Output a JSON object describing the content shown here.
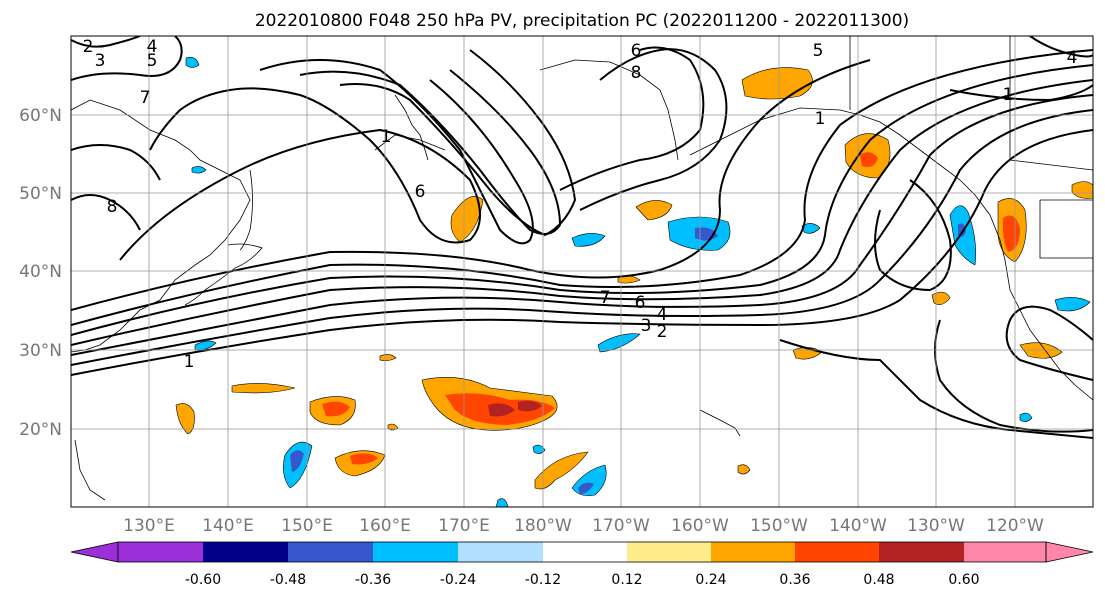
{
  "title": "2022010800 F048 250 hPa PV, precipitation PC (2022011200 - 2022011300)",
  "lat_labels": [
    "60°N",
    "50°N",
    "40°N",
    "30°N",
    "20°N"
  ],
  "lon_labels": [
    "130°E",
    "140°E",
    "150°E",
    "160°E",
    "170°E",
    "180°W",
    "170°W",
    "160°W",
    "150°W",
    "140°W",
    "130°W",
    "120°W"
  ],
  "contour_labels": [
    "2",
    "3",
    "4",
    "5",
    "6",
    "7",
    "8",
    "1",
    "7",
    "6",
    "4",
    "3",
    "2",
    "1",
    "6",
    "8",
    "5",
    "1",
    "4",
    "1"
  ],
  "colorbar": {
    "ticks": [
      "-0.60",
      "-0.48",
      "-0.36",
      "-0.24",
      "-0.12",
      "0.12",
      "0.24",
      "0.36",
      "0.48",
      "0.60"
    ],
    "colors": [
      "#9b30d9",
      "#00008b",
      "#3558cc",
      "#00bfff",
      "#b0e0ff",
      "#ffffff",
      "#ffec8b",
      "#ffa500",
      "#ff4500",
      "#b22222",
      "#ff88aa"
    ]
  },
  "palette": {
    "axis_label": "#777777",
    "contour": "#000000",
    "grid": "#999999"
  }
}
